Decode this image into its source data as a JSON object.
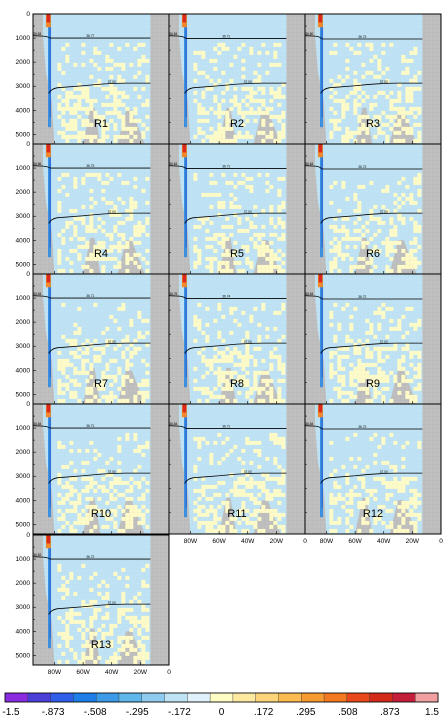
{
  "chart_data": {
    "type": "heatmap",
    "layout": {
      "columns": 3,
      "rows": 5
    },
    "y_axis": {
      "range": [
        0,
        5400
      ],
      "ticks": [
        "0",
        "1000",
        "2000",
        "3000",
        "4000",
        "5000"
      ],
      "inverted": true
    },
    "x_axis": {
      "range": [
        -95,
        0
      ],
      "ticks": [
        -80,
        -60,
        -40,
        -20,
        0
      ],
      "tick_labels": [
        "80W",
        "60W",
        "40W",
        "20W",
        "0"
      ]
    },
    "colorbar": {
      "labels": [
        "-1.5",
        "-.873",
        "-.508",
        "-.295",
        "-.172",
        "0",
        ".172",
        ".295",
        ".508",
        ".873",
        "1.5"
      ],
      "colors": [
        "#8a2be2",
        "#4a3fd8",
        "#2f5fe8",
        "#1e7ee8",
        "#3b9be8",
        "#5fb6ea",
        "#8ecbee",
        "#bde3f5",
        "#dff1fa",
        "#fffcc4",
        "#fde9a0",
        "#fcd57a",
        "#fbbb50",
        "#f79b30",
        "#f27920",
        "#e8481a",
        "#d42a1a",
        "#c41e3a",
        "#f0a0a0"
      ]
    },
    "panels": [
      {
        "name": "R1",
        "upper_contour_label": "36.77",
        "lower_contour_label": "37.00",
        "left_contour_label": "36.84"
      },
      {
        "name": "R2",
        "upper_contour_label": "36.71",
        "lower_contour_label": "37.00",
        "left_contour_label": "36.84"
      },
      {
        "name": "R3",
        "upper_contour_label": "36.73",
        "lower_contour_label": "37.00",
        "left_contour_label": "36.80"
      },
      {
        "name": "R4",
        "upper_contour_label": "36.73",
        "lower_contour_label": "37.00",
        "left_contour_label": "36.86"
      },
      {
        "name": "R5",
        "upper_contour_label": "36.71",
        "lower_contour_label": "37.00",
        "left_contour_label": "36.84"
      },
      {
        "name": "R6",
        "upper_contour_label": "36.73",
        "lower_contour_label": "37.00",
        "left_contour_label": "36.84"
      },
      {
        "name": "R7",
        "upper_contour_label": "36.71",
        "lower_contour_label": "37.00",
        "left_contour_label": "36.84"
      },
      {
        "name": "R8",
        "upper_contour_label": "36.74",
        "lower_contour_label": "37.00",
        "left_contour_label": "36.76"
      },
      {
        "name": "R9",
        "upper_contour_label": "36.72",
        "lower_contour_label": "37.00",
        "left_contour_label": "36.84"
      },
      {
        "name": "R10",
        "upper_contour_label": "36.71",
        "lower_contour_label": "37.00",
        "left_contour_label": "36.84"
      },
      {
        "name": "R11",
        "upper_contour_label": "36.71",
        "lower_contour_label": "37.00",
        "left_contour_label": "36.84"
      },
      {
        "name": "R12",
        "upper_contour_label": "36.73",
        "lower_contour_label": "37.00",
        "left_contour_label": "36.84"
      },
      {
        "name": "R13",
        "upper_contour_label": "36.72",
        "lower_contour_label": "37.00",
        "left_contour_label": "36.82"
      }
    ]
  }
}
